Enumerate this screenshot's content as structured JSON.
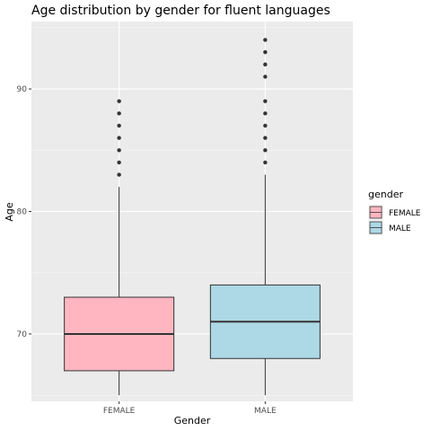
{
  "chart_data": {
    "type": "boxplot",
    "title": "Age distribution by gender for fluent languages",
    "xlabel": "Gender",
    "ylabel": "Age",
    "categories": [
      "FEMALE",
      "MALE"
    ],
    "ylim": [
      64.5,
      95.5
    ],
    "yticks": [
      70,
      80,
      90
    ],
    "grid": true,
    "legend": {
      "title": "gender",
      "position": "right",
      "entries": [
        "FEMALE",
        "MALE"
      ]
    },
    "series": [
      {
        "category": "FEMALE",
        "fill": "#ffb6c1",
        "whisker_low": 65,
        "q1": 67,
        "median": 70,
        "q3": 73,
        "whisker_high": 82,
        "outliers": [
          83,
          84,
          85,
          86,
          87,
          88,
          89
        ]
      },
      {
        "category": "MALE",
        "fill": "#add8e6",
        "whisker_low": 65,
        "q1": 68,
        "median": 71,
        "q3": 74,
        "whisker_high": 83,
        "outliers": [
          84,
          85,
          86,
          87,
          88,
          89,
          91,
          92,
          93,
          94
        ]
      }
    ]
  }
}
